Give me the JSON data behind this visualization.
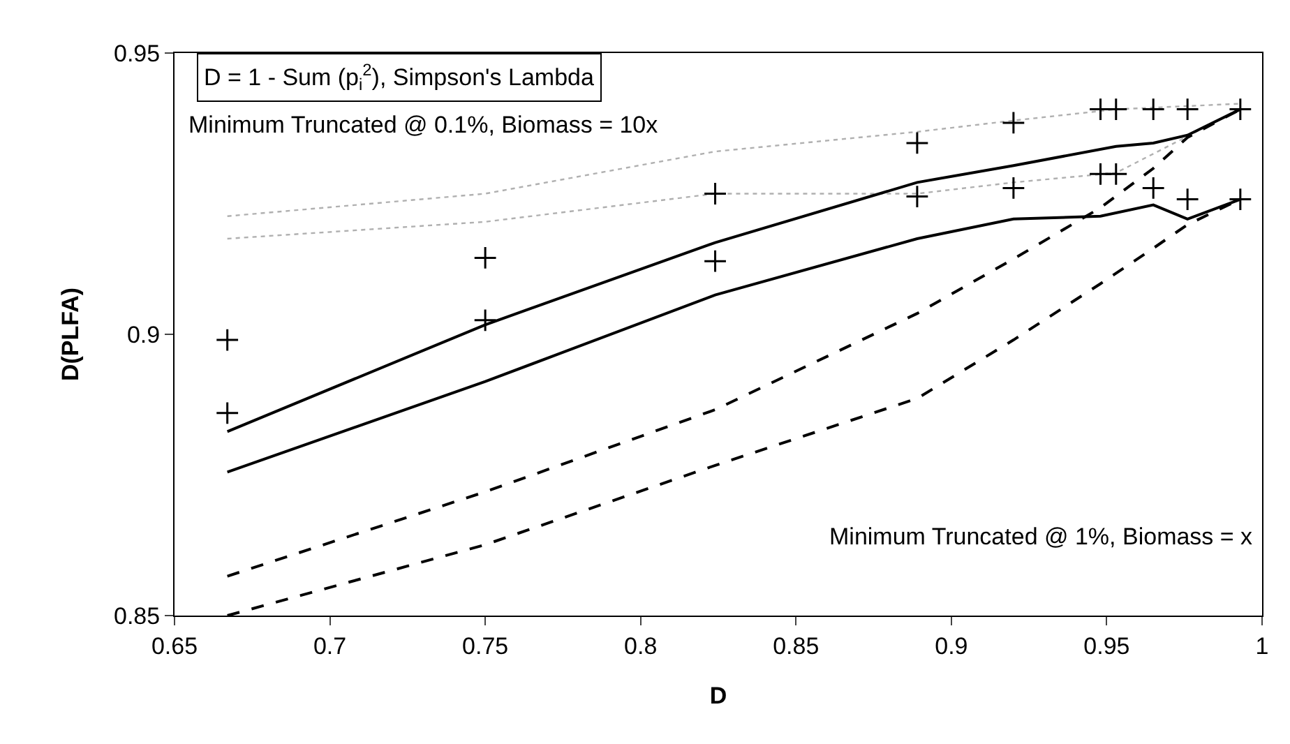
{
  "chart_data": {
    "type": "line",
    "xlabel": "D",
    "ylabel": "D(PLFA)",
    "xlim": [
      0.65,
      1
    ],
    "xticks": [
      0.65,
      0.7,
      0.75,
      0.8,
      0.85,
      0.9,
      0.95,
      1
    ],
    "ylim": [
      0.85,
      0.95
    ],
    "yticks": [
      0.85,
      0.9,
      0.95
    ],
    "grid": false,
    "annotations": [
      "D = 1 - Sum (p$_{i}$$^{2}$), Simpson's Lambda",
      "Minimum Truncated @ 0.1%, Biomass = 10x",
      "Minimum Truncated @ 1%, Biomass = x"
    ],
    "series": [
      {
        "color": "#b0b0b0",
        "line_style": "dotted",
        "marker": "none",
        "x": [
          0.667,
          0.75,
          0.824,
          0.889,
          0.92,
          0.953,
          0.993
        ],
        "values": [
          0.921,
          0.925,
          0.9325,
          0.936,
          0.938,
          0.94,
          0.941
        ]
      },
      {
        "color": "#b0b0b0",
        "line_style": "dotted",
        "marker": "none",
        "x": [
          0.667,
          0.75,
          0.824,
          0.889,
          0.92,
          0.953,
          0.993
        ],
        "values": [
          0.917,
          0.92,
          0.925,
          0.925,
          0.927,
          0.9287,
          0.94
        ]
      },
      {
        "color": "#000000",
        "line_style": "solid",
        "marker": "none",
        "x": [
          0.667,
          0.75,
          0.824,
          0.889,
          0.92,
          0.953,
          0.965,
          0.976,
          0.993
        ],
        "values": [
          0.8827,
          0.9017,
          0.9163,
          0.927,
          0.93,
          0.9334,
          0.934,
          0.9354,
          0.94
        ]
      },
      {
        "color": "#000000",
        "line_style": "solid",
        "marker": "none",
        "x": [
          0.667,
          0.75,
          0.824,
          0.889,
          0.92,
          0.948,
          0.965,
          0.976,
          0.993
        ],
        "values": [
          0.8755,
          0.8916,
          0.907,
          0.917,
          0.9205,
          0.921,
          0.923,
          0.9205,
          0.924
        ]
      },
      {
        "color": "#000000",
        "line_style": "dashed",
        "marker": "none",
        "x": [
          0.667,
          0.75,
          0.824,
          0.889,
          0.92,
          0.948,
          0.965,
          0.976,
          0.993
        ],
        "values": [
          0.857,
          0.872,
          0.8866,
          0.9037,
          0.9134,
          0.9225,
          0.9295,
          0.935,
          0.94
        ]
      },
      {
        "color": "#000000",
        "line_style": "dashed",
        "marker": "none",
        "x": [
          0.667,
          0.75,
          0.824,
          0.889,
          0.92,
          0.948,
          0.965,
          0.976,
          0.993
        ],
        "values": [
          0.85,
          0.8626,
          0.8767,
          0.8886,
          0.899,
          0.909,
          0.9153,
          0.9195,
          0.924
        ]
      },
      {
        "type": "scatter",
        "color": "#000000",
        "marker": "cross",
        "x": [
          0.667,
          0.75,
          0.824,
          0.889,
          0.92,
          0.948,
          0.953,
          0.965,
          0.976,
          0.993
        ],
        "values": [
          0.899,
          0.9136,
          0.925,
          0.934,
          0.9376,
          0.94,
          0.94,
          0.94,
          0.94,
          0.94
        ]
      },
      {
        "type": "scatter",
        "color": "#000000",
        "marker": "cross",
        "x": [
          0.667,
          0.75,
          0.824,
          0.889,
          0.92,
          0.948,
          0.953,
          0.965,
          0.976,
          0.993
        ],
        "values": [
          0.886,
          0.9025,
          0.913,
          0.9245,
          0.926,
          0.9285,
          0.9285,
          0.926,
          0.924,
          0.924
        ]
      }
    ]
  }
}
